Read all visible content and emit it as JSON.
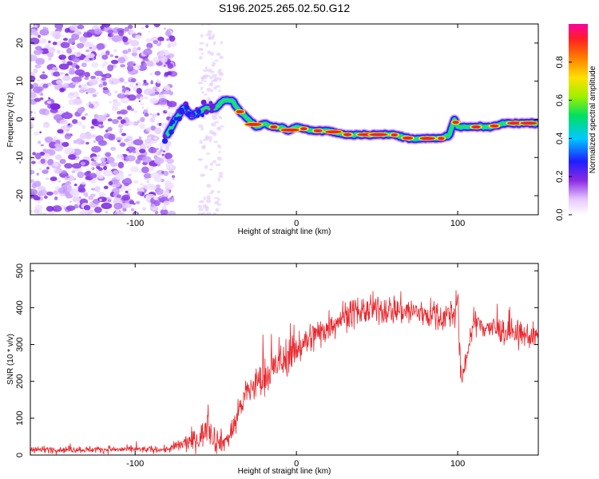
{
  "title": "S196.2025.265.02.50.G12",
  "colors": {
    "frame": "#000000",
    "snr_line": "#e8262b",
    "scatter": "#8a3ce6",
    "ridge_core": "#e8262b"
  },
  "chart_data": [
    {
      "type": "heatmap",
      "title": "S196.2025.265.02.50.G12",
      "xlabel": "Height of straight line (km)",
      "ylabel": "Frequency (Hz)",
      "xlim": [
        -165,
        150
      ],
      "ylim": [
        -25,
        25
      ],
      "x_ticks": [
        -100,
        0,
        100
      ],
      "x_tick_labels": [
        "-100",
        "0",
        "100"
      ],
      "y_ticks": [
        20,
        10,
        0,
        -10,
        -20
      ],
      "y_tick_labels": [
        "20",
        "10",
        "0",
        "-10",
        "-20"
      ],
      "colorbar": {
        "label": "Normalized spectral amplitude",
        "range": [
          0,
          1
        ],
        "ticks": [
          0.0,
          0.2,
          0.4,
          0.6,
          0.8
        ],
        "tick_labels": [
          "0.0",
          "0.2",
          "0.4",
          "0.6",
          "0.8"
        ]
      },
      "noise_region_x": [
        -165,
        -80
      ],
      "ridge": {
        "x": [
          -80,
          -75,
          -70,
          -65,
          -60,
          -55,
          -50,
          -45,
          -40,
          -35,
          -30,
          -25,
          -20,
          -15,
          -10,
          -5,
          0,
          10,
          20,
          30,
          40,
          50,
          60,
          70,
          80,
          90,
          95,
          98,
          100,
          110,
          120,
          130,
          140,
          150
        ],
        "frequency": [
          -4,
          0,
          3,
          1,
          2,
          3,
          3,
          5,
          5,
          2,
          0,
          -2,
          -1,
          -2,
          -2,
          -3,
          -2,
          -3,
          -3,
          -4,
          -4,
          -4,
          -4,
          -5,
          -5,
          -5,
          -4,
          0,
          -2,
          -2,
          -2,
          -1,
          -1,
          -1
        ]
      }
    },
    {
      "type": "line",
      "xlabel": "Height of straight line (km)",
      "ylabel": "SNR (10 * v/v)",
      "xlim": [
        -165,
        150
      ],
      "ylim": [
        0,
        520
      ],
      "x_ticks": [
        -100,
        0,
        100
      ],
      "x_tick_labels": [
        "-100",
        "0",
        "100"
      ],
      "y_ticks": [
        0,
        100,
        200,
        300,
        400,
        500
      ],
      "y_tick_labels": [
        "0",
        "100",
        "200",
        "300",
        "400",
        "500"
      ],
      "series": [
        {
          "name": "SNR",
          "trend_x": [
            -165,
            -80,
            -70,
            -60,
            -55,
            -50,
            -45,
            -40,
            -35,
            -30,
            -20,
            -10,
            0,
            10,
            20,
            30,
            40,
            50,
            60,
            70,
            80,
            90,
            98,
            100,
            101,
            102,
            110,
            120,
            130,
            140,
            150
          ],
          "trend_y": [
            15,
            15,
            30,
            45,
            80,
            40,
            35,
            60,
            130,
            175,
            210,
            250,
            290,
            320,
            350,
            380,
            390,
            395,
            395,
            390,
            385,
            375,
            385,
            420,
            300,
            200,
            360,
            345,
            335,
            325,
            320
          ],
          "noise_amplitude": [
            10,
            10,
            25,
            35,
            45,
            40,
            30,
            35,
            45,
            50,
            55,
            55,
            55,
            50,
            45,
            45,
            45,
            45,
            45,
            45,
            45,
            45,
            45,
            45,
            45,
            45,
            40,
            40,
            40,
            40,
            40
          ]
        }
      ]
    }
  ]
}
